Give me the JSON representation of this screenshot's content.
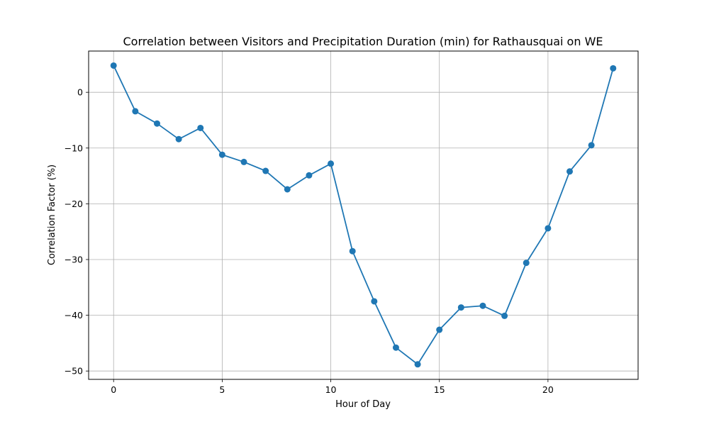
{
  "chart_data": {
    "type": "line",
    "title": "Correlation between Visitors and Precipitation Duration (min) for Rathausquai on WE",
    "xlabel": "Hour of Day",
    "ylabel": "Correlation Factor (%)",
    "x": [
      0,
      1,
      2,
      3,
      4,
      5,
      6,
      7,
      8,
      9,
      10,
      11,
      12,
      13,
      14,
      15,
      16,
      17,
      18,
      19,
      20,
      21,
      22,
      23
    ],
    "series": [
      {
        "values": [
          4.8,
          -3.4,
          -5.6,
          -8.4,
          -6.4,
          -11.2,
          -12.5,
          -14.1,
          -17.4,
          -14.9,
          -12.8,
          -28.5,
          -37.5,
          -45.8,
          -48.8,
          -42.6,
          -38.6,
          -38.3,
          -40.1,
          -30.6,
          -24.4,
          -14.2,
          -9.5,
          4.3
        ],
        "color": "#1f77b4",
        "marker": "circle"
      }
    ],
    "xlim": [
      -1.15,
      24.15
    ],
    "ylim": [
      -51.5,
      7.4
    ],
    "xticks": [
      0,
      5,
      10,
      15,
      20
    ],
    "yticks": [
      0,
      -10,
      -20,
      -30,
      -40,
      -50
    ],
    "ytick_labels": [
      "0",
      "−10",
      "−20",
      "−30",
      "−40",
      "−50"
    ],
    "grid": true
  }
}
